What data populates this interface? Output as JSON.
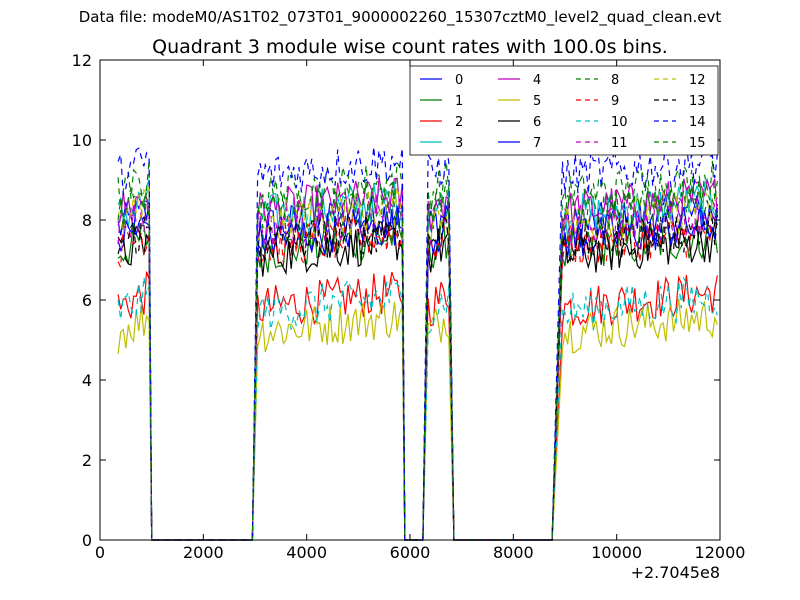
{
  "figure": {
    "suptitle": "Data file: modeM0/AS1T02_073T01_9000002260_15307cztM0_level2_quad_clean.evt"
  },
  "chart_data": {
    "type": "line",
    "title": "Quadrant 3 module wise count rates with 100.0s bins.",
    "xlabel": "",
    "ylabel": "",
    "x_offset_label": "+2.7045e8",
    "xlim": [
      0,
      12000
    ],
    "ylim": [
      0,
      12
    ],
    "xticks": [
      0,
      2000,
      4000,
      6000,
      8000,
      10000,
      12000
    ],
    "yticks": [
      0,
      2,
      4,
      6,
      8,
      10,
      12
    ],
    "grid": false,
    "legend_position": "top-right",
    "legend_columns": 4,
    "segments": [
      {
        "x_start": 350,
        "x_end": 950,
        "on": true
      },
      {
        "x_start": 1000,
        "x_end": 2950,
        "on": false
      },
      {
        "x_start": 3050,
        "x_end": 5850,
        "on": true
      },
      {
        "x_start": 5900,
        "x_end": 6250,
        "on": false
      },
      {
        "x_start": 6350,
        "x_end": 6750,
        "on": true
      },
      {
        "x_start": 6850,
        "x_end": 8750,
        "on": false
      },
      {
        "x_start": 8950,
        "x_end": 11950,
        "on": true
      }
    ],
    "series": [
      {
        "name": "0",
        "color": "#0000ff",
        "dash": "solid",
        "level": 8.0
      },
      {
        "name": "1",
        "color": "#008000",
        "dash": "solid",
        "level": 7.4
      },
      {
        "name": "2",
        "color": "#ff0000",
        "dash": "solid",
        "level": 6.0
      },
      {
        "name": "3",
        "color": "#00bfbf",
        "dash": "solid",
        "level": 8.3
      },
      {
        "name": "4",
        "color": "#bf00bf",
        "dash": "solid",
        "level": 8.4
      },
      {
        "name": "5",
        "color": "#bfbf00",
        "dash": "solid",
        "level": 5.4
      },
      {
        "name": "6",
        "color": "#000000",
        "dash": "solid",
        "level": 7.3
      },
      {
        "name": "7",
        "color": "#0000ff",
        "dash": "solid",
        "level": 7.7
      },
      {
        "name": "8",
        "color": "#008000",
        "dash": "dashed",
        "level": 8.8
      },
      {
        "name": "9",
        "color": "#ff0000",
        "dash": "dashed",
        "level": 7.5
      },
      {
        "name": "10",
        "color": "#00bfbf",
        "dash": "dashed",
        "level": 5.9
      },
      {
        "name": "11",
        "color": "#bf00bf",
        "dash": "dashed",
        "level": 8.0
      },
      {
        "name": "12",
        "color": "#bfbf00",
        "dash": "dashed",
        "level": 8.1
      },
      {
        "name": "13",
        "color": "#000000",
        "dash": "dashed",
        "level": 7.6
      },
      {
        "name": "14",
        "color": "#0000ff",
        "dash": "dashed",
        "level": 9.3
      },
      {
        "name": "15",
        "color": "#008000",
        "dash": "dashed",
        "level": 8.3
      }
    ]
  }
}
